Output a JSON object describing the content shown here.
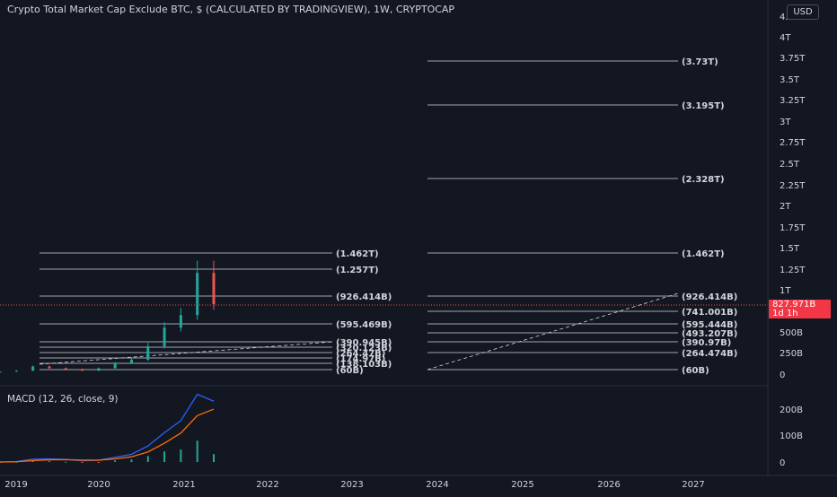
{
  "header": {
    "title": "Crypto Total Market Cap Exclude BTC, $ (CALCULATED BY TRADINGVIEW), 1W, CRYPTOCAP",
    "currency": "USD",
    "last_price": "827.971B",
    "countdown": "1d 1h"
  },
  "macd": {
    "title": "MACD (12, 26, close, 9)",
    "ticks": [
      "200B",
      "100B",
      "0"
    ]
  },
  "colors": {
    "background": "#131722",
    "text": "#d1d4dc",
    "up": "#26a69a",
    "down": "#ef5350",
    "macd_line": "#2962ff",
    "signal_line": "#ff6d00",
    "price_tag": "#f23645"
  },
  "chart_data": {
    "type": "line",
    "x_ticks": [
      "2019",
      "2020",
      "2021",
      "2022",
      "2023",
      "2024",
      "2025",
      "2026",
      "2027"
    ],
    "y_ticks": [
      "4.25T",
      "4T",
      "3.75T",
      "3.5T",
      "3.25T",
      "3T",
      "2.75T",
      "2.5T",
      "2.25T",
      "2T",
      "1.75T",
      "1.5T",
      "1.25T",
      "1T",
      "500B",
      "250B",
      "0"
    ],
    "current_price": "827.971B",
    "levels_left": [
      "(1.462T)",
      "(1.257T)",
      "(926.414B)",
      "(595.469B)",
      "(390.945B)",
      "(320.123B)",
      "(264.47B)",
      "(174.97B)",
      "(138.103B)",
      "(60B)"
    ],
    "levels_right": [
      "(3.73T)",
      "(3.195T)",
      "(2.328T)",
      "(1.462T)",
      "(926.414B)",
      "(741.001B)",
      "(595.444B)",
      "(493.207B)",
      "(390.97B)",
      "(264.474B)",
      "(60B)"
    ],
    "series": [
      {
        "x": [
          "2018-12",
          "2019-03",
          "2019-06",
          "2019-09",
          "2019-12",
          "2020-03",
          "2020-06",
          "2020-09",
          "2020-12",
          "2021-01",
          "2021-02",
          "2021-03",
          "2021-04",
          "2021-05"
        ],
        "values": [
          0.03,
          0.04,
          0.09,
          0.07,
          0.06,
          0.04,
          0.07,
          0.13,
          0.17,
          0.33,
          0.55,
          0.7,
          1.2,
          0.83
        ]
      }
    ],
    "ylim": [
      0,
      4.35
    ],
    "grid": false
  }
}
